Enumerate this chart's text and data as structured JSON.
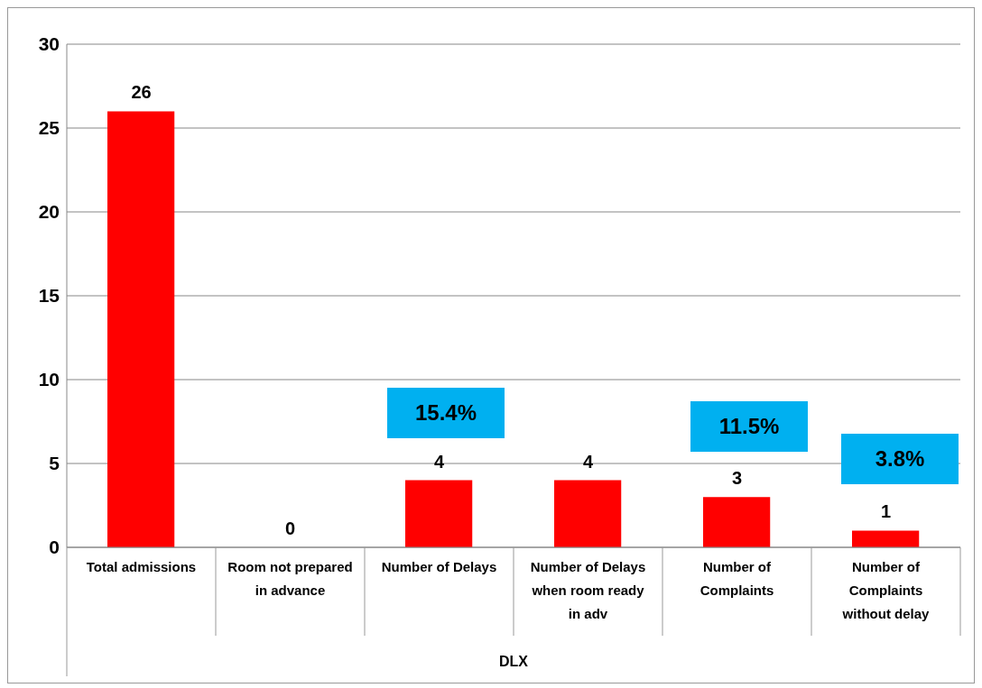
{
  "chart_data": {
    "type": "bar",
    "xlabel": "DLX",
    "categories": [
      "Total admissions",
      "Room not prepared in advance",
      "Number of Delays",
      "Number of Delays when room ready in adv",
      "Number of Complaints",
      "Number of Complaints without delay"
    ],
    "values": [
      26,
      0,
      4,
      4,
      3,
      1
    ],
    "color": "#ff0000",
    "data_labels": true,
    "ylim": [
      0,
      30
    ],
    "yticks": [
      0,
      5,
      10,
      15,
      20,
      25,
      30
    ],
    "grid": "y",
    "legend": false,
    "annotations": [
      "15.4%",
      "11.5%",
      "3.8%"
    ]
  }
}
